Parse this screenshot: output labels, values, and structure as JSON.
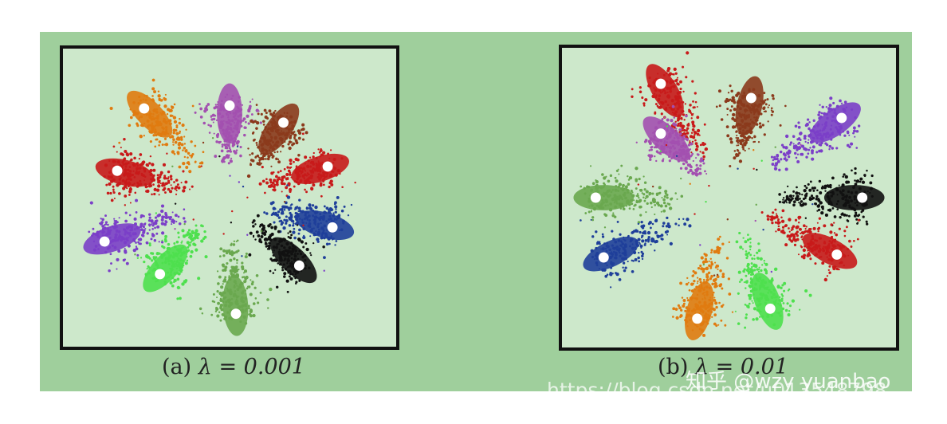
{
  "figure": {
    "captions": {
      "a_label": "(a)",
      "a_value": "λ = 0.001",
      "b_label": "(b)",
      "b_value": "λ = 0.01"
    },
    "watermarks": {
      "zhihu": "知乎 @wzy yuanbao",
      "csdn": "https://blog.csdn.net/u013548798"
    }
  },
  "chart_data": [
    {
      "type": "scatter",
      "caption": "(a) λ = 0.001",
      "series": [
        {
          "color": "#e07b10",
          "center": [
            -0.54,
            0.63
          ]
        },
        {
          "color": "#a350b0",
          "center": [
            0.0,
            0.65
          ]
        },
        {
          "color": "#8b3a1c",
          "center": [
            0.34,
            0.53
          ]
        },
        {
          "color": "#c81a1a",
          "center": [
            -0.71,
            0.19
          ]
        },
        {
          "color": "#c81a1a",
          "center": [
            0.62,
            0.22
          ]
        },
        {
          "color": "#7b3fc8",
          "center": [
            -0.79,
            -0.31
          ]
        },
        {
          "color": "#1f3f9a",
          "center": [
            0.65,
            -0.21
          ]
        },
        {
          "color": "#4ee04e",
          "center": [
            -0.44,
            -0.54
          ]
        },
        {
          "color": "#6aa84f",
          "center": [
            0.04,
            -0.82
          ]
        },
        {
          "color": "#111111",
          "center": [
            0.44,
            -0.48
          ]
        }
      ]
    },
    {
      "type": "scatter",
      "caption": "(b) λ = 0.01",
      "series": [
        {
          "color": "#c81a1a",
          "center": [
            -0.43,
            0.8
          ]
        },
        {
          "color": "#8b3a1c",
          "center": [
            0.14,
            0.7
          ]
        },
        {
          "color": "#7b3fc8",
          "center": [
            0.71,
            0.56
          ]
        },
        {
          "color": "#a350b0",
          "center": [
            -0.43,
            0.45
          ]
        },
        {
          "color": "#6aa84f",
          "center": [
            -0.84,
            0.0
          ]
        },
        {
          "color": "#111111",
          "center": [
            0.84,
            0.0
          ]
        },
        {
          "color": "#1f3f9a",
          "center": [
            -0.79,
            -0.42
          ]
        },
        {
          "color": "#c81a1a",
          "center": [
            0.68,
            -0.4
          ]
        },
        {
          "color": "#e07b10",
          "center": [
            -0.2,
            -0.85
          ]
        },
        {
          "color": "#4ee04e",
          "center": [
            0.26,
            -0.78
          ]
        }
      ]
    }
  ]
}
